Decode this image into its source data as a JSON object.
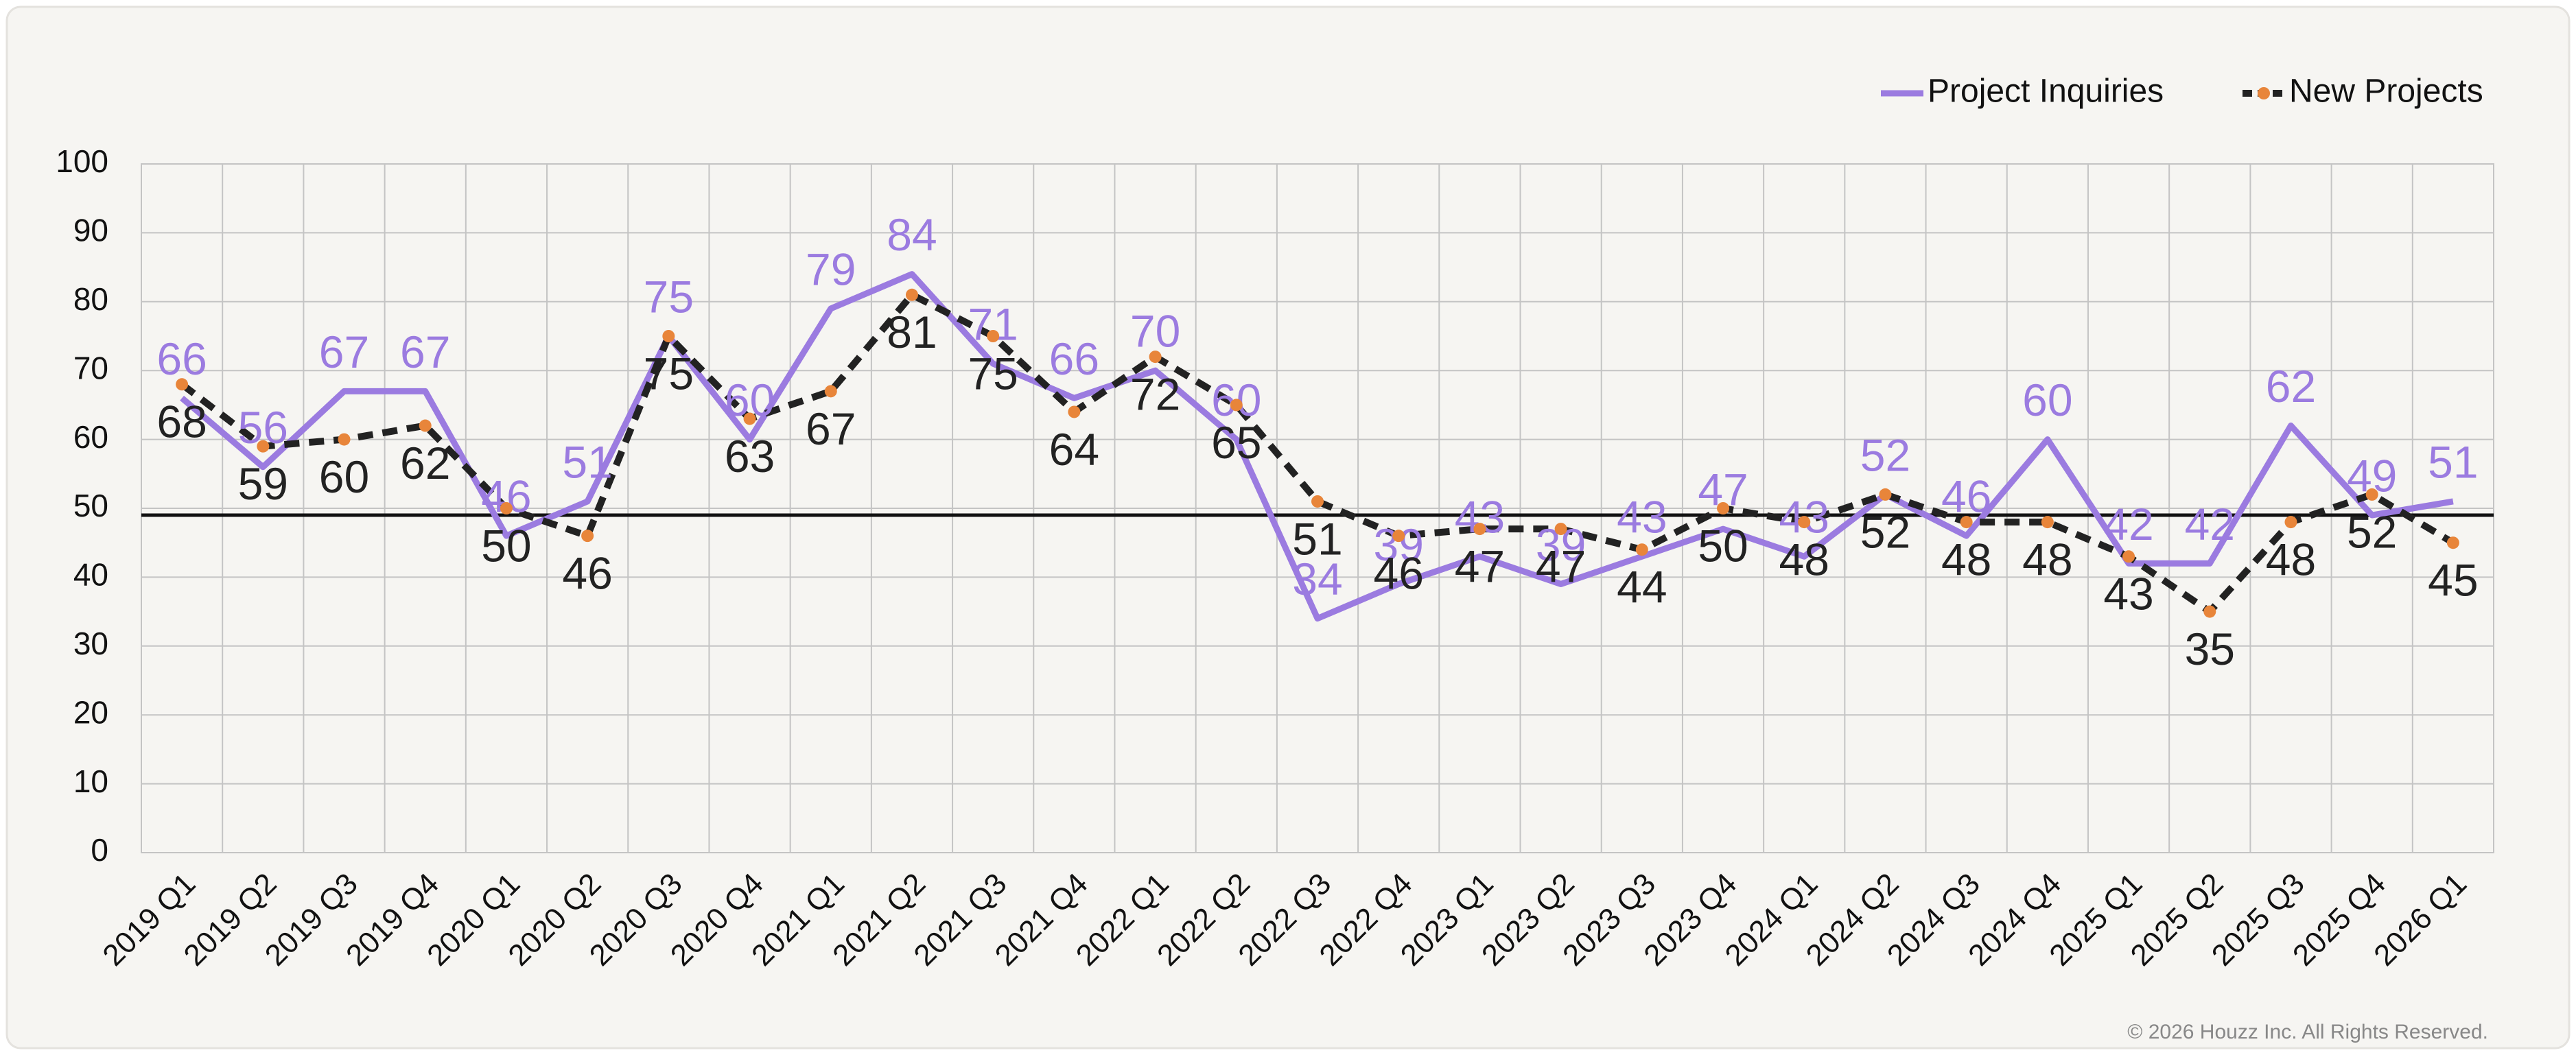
{
  "chart_data": {
    "type": "line",
    "categories": [
      "2019 Q1",
      "2019 Q2",
      "2019 Q3",
      "2019 Q4",
      "2020 Q1",
      "2020 Q2",
      "2020 Q3",
      "2020 Q4",
      "2021 Q1",
      "2021 Q2",
      "2021 Q3",
      "2021 Q4",
      "2022 Q1",
      "2022 Q2",
      "2022 Q3",
      "2022 Q4",
      "2023 Q1",
      "2023 Q2",
      "2023 Q3",
      "2023 Q4",
      "2024 Q1",
      "2024 Q2",
      "2024 Q3",
      "2024 Q4",
      "2025 Q1",
      "2025 Q2",
      "2025 Q3",
      "2025 Q4",
      "2026 Q1"
    ],
    "series": [
      {
        "name": "Project Inquiries",
        "color": "#9b7be0",
        "values": [
          66,
          56,
          67,
          67,
          46,
          51,
          75,
          60,
          79,
          84,
          71,
          66,
          70,
          60,
          34,
          39,
          43,
          39,
          43,
          47,
          43,
          52,
          46,
          60,
          42,
          42,
          62,
          49,
          51
        ]
      },
      {
        "name": "New Projects",
        "color": "#222222",
        "marker_color": "#e8853a",
        "values": [
          68,
          59,
          60,
          62,
          50,
          46,
          75,
          63,
          67,
          81,
          75,
          64,
          72,
          65,
          51,
          46,
          47,
          47,
          44,
          50,
          48,
          52,
          48,
          48,
          43,
          35,
          48,
          52,
          45
        ]
      }
    ],
    "reference_line": 49,
    "ylim": [
      0,
      100
    ],
    "yticks": [
      0,
      10,
      20,
      30,
      40,
      50,
      60,
      70,
      80,
      90,
      100
    ],
    "grid": true,
    "legend": "top-right",
    "footer": "© 2026 Houzz Inc. All Rights Reserved."
  }
}
